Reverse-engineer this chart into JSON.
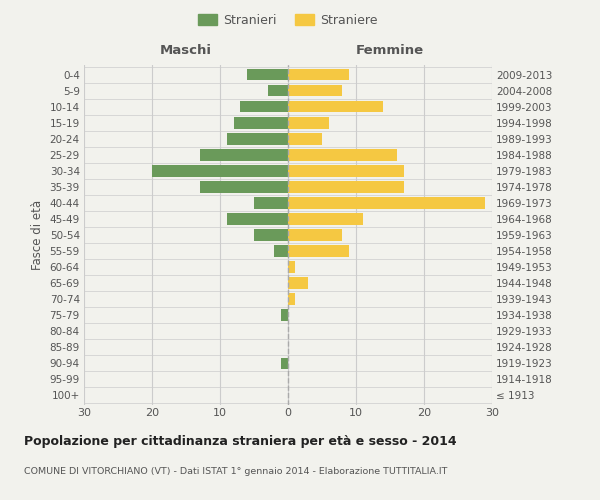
{
  "age_groups": [
    "100+",
    "95-99",
    "90-94",
    "85-89",
    "80-84",
    "75-79",
    "70-74",
    "65-69",
    "60-64",
    "55-59",
    "50-54",
    "45-49",
    "40-44",
    "35-39",
    "30-34",
    "25-29",
    "20-24",
    "15-19",
    "10-14",
    "5-9",
    "0-4"
  ],
  "birth_years": [
    "≤ 1913",
    "1914-1918",
    "1919-1923",
    "1924-1928",
    "1929-1933",
    "1934-1938",
    "1939-1943",
    "1944-1948",
    "1949-1953",
    "1954-1958",
    "1959-1963",
    "1964-1968",
    "1969-1973",
    "1974-1978",
    "1979-1983",
    "1984-1988",
    "1989-1993",
    "1994-1998",
    "1999-2003",
    "2004-2008",
    "2009-2013"
  ],
  "males": [
    0,
    0,
    1,
    0,
    0,
    1,
    0,
    0,
    0,
    2,
    5,
    9,
    5,
    13,
    20,
    13,
    9,
    8,
    7,
    3,
    6
  ],
  "females": [
    0,
    0,
    0,
    0,
    0,
    0,
    1,
    3,
    1,
    9,
    8,
    11,
    29,
    17,
    17,
    16,
    5,
    6,
    14,
    8,
    9
  ],
  "male_color": "#6a9a5a",
  "female_color": "#f5c842",
  "bg_color": "#f2f2ed",
  "grid_color": "#cccccc",
  "xlim": 30,
  "title": "Popolazione per cittadinanza straniera per età e sesso - 2014",
  "subtitle": "COMUNE DI VITORCHIANO (VT) - Dati ISTAT 1° gennaio 2014 - Elaborazione TUTTITALIA.IT",
  "xlabel_left": "Maschi",
  "xlabel_right": "Femmine",
  "ylabel_left": "Fasce di età",
  "legend_male": "Stranieri",
  "legend_female": "Straniere"
}
